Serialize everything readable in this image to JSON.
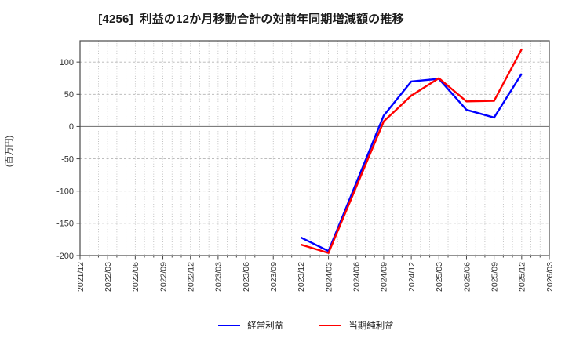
{
  "chart_data": {
    "type": "line",
    "title": "[4256]  利益の12か月移動合計の対前年同期増減額の推移",
    "ylabel": "(百万円)",
    "unit": "百万円",
    "ticker_code": "4256",
    "x_tick_labels": [
      "2021/12",
      "2022/03",
      "2022/06",
      "2022/09",
      "2022/12",
      "2023/03",
      "2023/06",
      "2023/09",
      "2023/12",
      "2024/03",
      "2024/06",
      "2024/09",
      "2024/12",
      "2025/03",
      "2025/06",
      "2025/09",
      "2025/12",
      "2026/03"
    ],
    "y_ticks": [
      100,
      50,
      0,
      -50,
      -100,
      -150,
      -200
    ],
    "ylim": [
      -200,
      133
    ],
    "grid": {
      "vertical": "monthly-dotted",
      "horizontal": "every-50-dashed",
      "zero_line": "solid"
    },
    "legend_position": "bottom-center",
    "series": [
      {
        "name": "経常利益",
        "color": "#0000ff",
        "values": [
          null,
          null,
          null,
          null,
          null,
          null,
          null,
          null,
          -172,
          -193,
          -88,
          17,
          70,
          74,
          26,
          14,
          82,
          null
        ]
      },
      {
        "name": "当期純利益",
        "color": "#ff0000",
        "values": [
          null,
          null,
          null,
          null,
          null,
          null,
          null,
          null,
          -183,
          -196,
          -94,
          8,
          48,
          75,
          39,
          40,
          120,
          null
        ]
      }
    ]
  }
}
